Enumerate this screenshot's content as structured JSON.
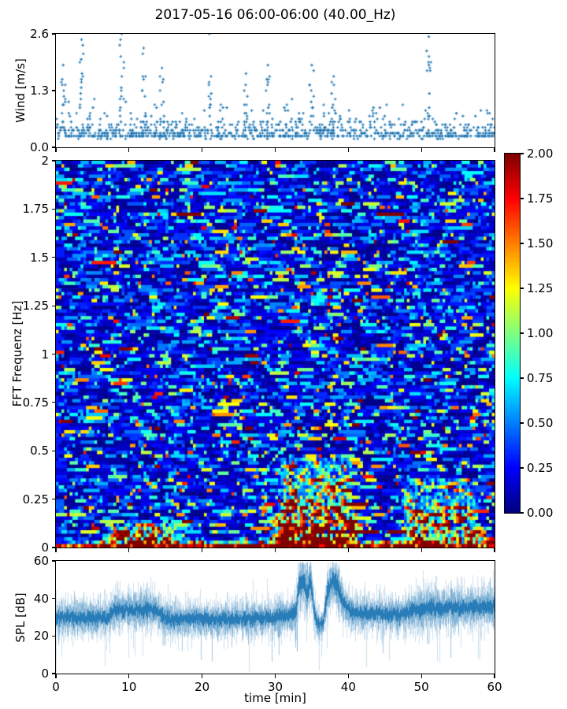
{
  "figure": {
    "title": "2017-05-16 06:00-06:00 (40.00_Hz)",
    "background": "#ffffff",
    "accent_blue": "#1f77b4"
  },
  "chart_data": [
    {
      "id": "wind",
      "type": "scatter",
      "title": "",
      "ylabel": "Wind [m/s]",
      "xlabel": "",
      "xlim": [
        0,
        60
      ],
      "ylim": [
        0.0,
        2.6
      ],
      "yticks": [
        {
          "v": 0.0,
          "label": "0.0"
        },
        {
          "v": 1.3,
          "label": "1.3"
        },
        {
          "v": 2.6,
          "label": "2.6"
        }
      ],
      "marker": "plus",
      "color": "#1f77b4",
      "grid": false,
      "value_quantum": 0.065,
      "baseline_min": 0.22,
      "max_envelope": {
        "t": [
          0,
          1,
          2,
          3.5,
          5,
          7,
          9,
          9.5,
          12,
          13,
          14.5,
          16,
          17,
          19,
          20.5,
          21,
          21.5,
          24,
          26,
          27,
          29,
          30,
          31.5,
          33,
          35,
          36,
          38,
          40,
          42,
          44,
          46,
          48,
          50,
          51,
          51.5,
          54,
          56,
          58,
          60
        ],
        "v": [
          1.1,
          1.9,
          1.4,
          2.5,
          1.3,
          1.6,
          2.6,
          1.5,
          2.3,
          1.2,
          1.8,
          1.3,
          0.9,
          1.1,
          1.2,
          2.6,
          1.2,
          1.0,
          1.7,
          1.1,
          1.9,
          1.2,
          1.4,
          1.0,
          1.9,
          1.2,
          1.6,
          1.0,
          0.8,
          1.3,
          0.9,
          1.2,
          1.5,
          2.55,
          1.3,
          0.8,
          1.0,
          0.9,
          1.1
        ]
      },
      "spike_events": [
        {
          "t": 1.0,
          "peak": 1.9
        },
        {
          "t": 3.5,
          "peak": 2.5
        },
        {
          "t": 9.0,
          "peak": 2.6
        },
        {
          "t": 12.0,
          "peak": 2.3
        },
        {
          "t": 14.5,
          "peak": 1.8
        },
        {
          "t": 21.0,
          "peak": 2.6
        },
        {
          "t": 26.0,
          "peak": 1.7
        },
        {
          "t": 29.0,
          "peak": 1.9
        },
        {
          "t": 35.0,
          "peak": 1.9
        },
        {
          "t": 38.0,
          "peak": 1.6
        },
        {
          "t": 51.0,
          "peak": 2.55
        }
      ],
      "seed": 42
    },
    {
      "id": "spectrogram",
      "type": "heatmap",
      "title": "",
      "ylabel": "FFT Frequenz [Hz]",
      "xlabel": "",
      "xlim": [
        0,
        60
      ],
      "ylim": [
        0,
        2
      ],
      "yticks": [
        {
          "v": 2,
          "label": "2"
        },
        {
          "v": 1.75,
          "label": "1.75"
        },
        {
          "v": 1.5,
          "label": "1.5"
        },
        {
          "v": 1.25,
          "label": "1.25"
        },
        {
          "v": 1,
          "label": "1"
        },
        {
          "v": 0.75,
          "label": "0.75"
        },
        {
          "v": 0.5,
          "label": "0.5"
        },
        {
          "v": 0.25,
          "label": "0.25"
        },
        {
          "v": 0,
          "label": "0"
        }
      ],
      "colormap": "jet",
      "clim": [
        0,
        2
      ],
      "base_exp_mean": 0.32,
      "hotspots": [
        {
          "t": [
            0,
            60
          ],
          "f": [
            0,
            0.03
          ],
          "boost": 1.7,
          "desc": "continuous warm band at lowest frequencies"
        },
        {
          "t": [
            7,
            17
          ],
          "f": [
            0,
            0.13
          ],
          "boost": 1.5,
          "desc": "low-frequency event 7-17 min"
        },
        {
          "t": [
            29,
            42
          ],
          "f": [
            0,
            0.17
          ],
          "boost": 2.2,
          "desc": "strong dark-red event 29-42 min"
        },
        {
          "t": [
            30,
            41
          ],
          "f": [
            0.17,
            0.47
          ],
          "boost": 0.8,
          "desc": "elevated speckle above main event"
        },
        {
          "t": [
            47,
            58
          ],
          "f": [
            0,
            0.35
          ],
          "boost": 0.85,
          "desc": "warm speckle event 47-58 min"
        },
        {
          "t": [
            52,
            60
          ],
          "f": [
            0,
            0.08
          ],
          "boost": 0.9,
          "desc": "late low-frequency warmth"
        }
      ],
      "colorbar": {
        "lim": [
          0,
          2
        ],
        "ticks": [
          {
            "v": 2.0,
            "label": "2.00"
          },
          {
            "v": 1.75,
            "label": "1.75"
          },
          {
            "v": 1.5,
            "label": "1.50"
          },
          {
            "v": 1.25,
            "label": "1.25"
          },
          {
            "v": 1.0,
            "label": "1.00"
          },
          {
            "v": 0.75,
            "label": "0.75"
          },
          {
            "v": 0.5,
            "label": "0.50"
          },
          {
            "v": 0.25,
            "label": "0.25"
          },
          {
            "v": 0.0,
            "label": "0.00"
          }
        ]
      },
      "seed": 1234
    },
    {
      "id": "spl",
      "type": "line",
      "title": "",
      "ylabel": "SPL [dB]",
      "xlabel": "time [min]",
      "xlim": [
        0,
        60
      ],
      "ylim": [
        0,
        60
      ],
      "yticks": [
        {
          "v": 0,
          "label": "0"
        },
        {
          "v": 20,
          "label": "20"
        },
        {
          "v": 40,
          "label": "40"
        },
        {
          "v": 60,
          "label": "60"
        }
      ],
      "xticks": [
        {
          "v": 0,
          "label": "0"
        },
        {
          "v": 10,
          "label": "10"
        },
        {
          "v": 20,
          "label": "20"
        },
        {
          "v": 30,
          "label": "30"
        },
        {
          "v": 40,
          "label": "40"
        },
        {
          "v": 50,
          "label": "50"
        },
        {
          "v": 60,
          "label": "60"
        }
      ],
      "color": "#1f77b4",
      "grid": false,
      "envelope": {
        "t": [
          0,
          7,
          8,
          13.5,
          15,
          25,
          30,
          32,
          32.8,
          33.2,
          33.8,
          34.3,
          34.8,
          35.3,
          35.8,
          36.5,
          37.1,
          37.8,
          38.5,
          39.2,
          40,
          41,
          44,
          47,
          49,
          52,
          56,
          60
        ],
        "mean": [
          30,
          30,
          34,
          34,
          29,
          29,
          30,
          31,
          33,
          47,
          50,
          43,
          50,
          33,
          26,
          27,
          44,
          50,
          47,
          38,
          34,
          32,
          32,
          31,
          34,
          35,
          35,
          36
        ],
        "spread": [
          6,
          6,
          6.5,
          6.5,
          6,
          6,
          6,
          6,
          7,
          9,
          9,
          10,
          9,
          7,
          5,
          5,
          8,
          8,
          8,
          7,
          6,
          6,
          6,
          6,
          7,
          7,
          7,
          7
        ]
      },
      "seed": 99
    }
  ]
}
